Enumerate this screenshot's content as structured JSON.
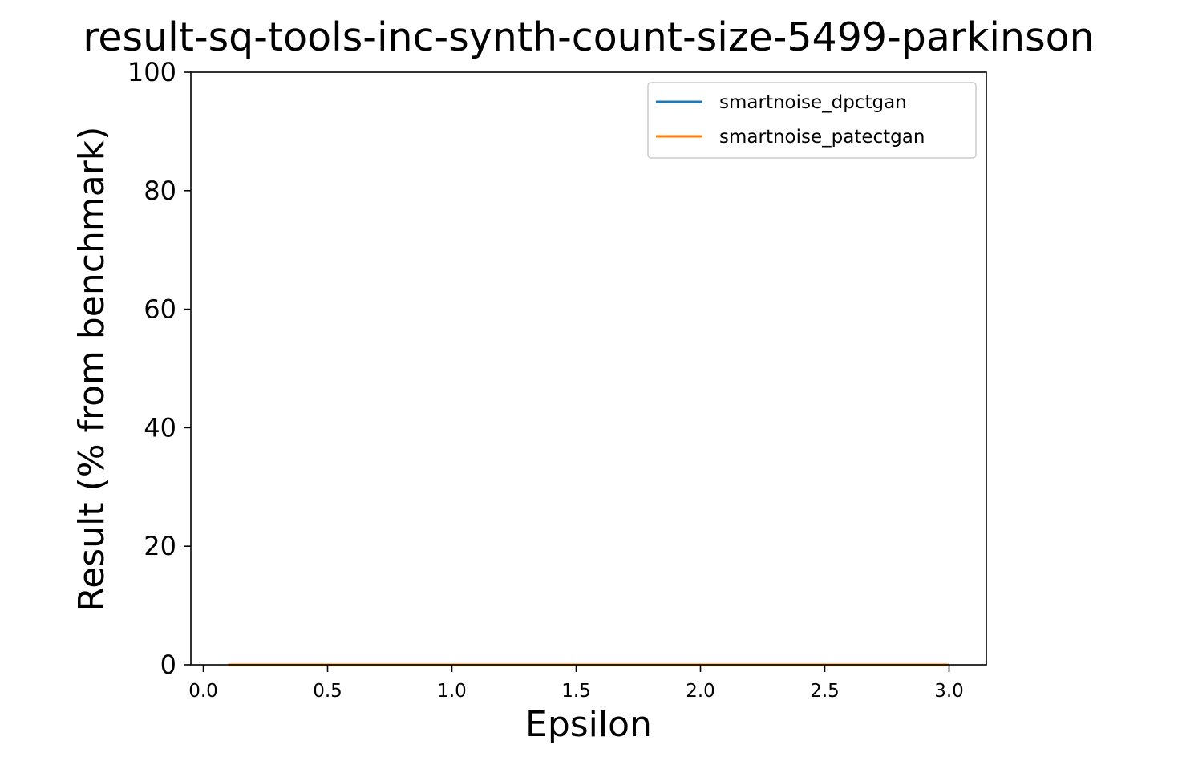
{
  "chart_data": {
    "type": "line",
    "title": "result-sq-tools-inc-synth-count-size-5499-parkinson",
    "xlabel": "Epsilon",
    "ylabel": "Result (% from benchmark)",
    "xlim": [
      -0.05,
      3.15
    ],
    "ylim": [
      0,
      100
    ],
    "xticks": [
      "0.0",
      "0.5",
      "1.0",
      "1.5",
      "2.0",
      "2.5",
      "3.0"
    ],
    "yticks": [
      "0",
      "20",
      "40",
      "60",
      "80",
      "100"
    ],
    "grid": false,
    "legend_position": "top-right",
    "series": [
      {
        "name": "smartnoise_dpctgan",
        "color": "#1f77b4",
        "x": [
          0.1,
          0.5,
          1.0,
          1.5,
          2.0,
          2.5,
          3.0
        ],
        "y": [
          0,
          0,
          0,
          0,
          0,
          0,
          0
        ]
      },
      {
        "name": "smartnoise_patectgan",
        "color": "#ff7f0e",
        "x": [
          0.1,
          0.5,
          1.0,
          1.5,
          2.0,
          2.5,
          3.0
        ],
        "y": [
          0,
          0,
          0,
          0,
          0,
          0,
          0
        ]
      }
    ]
  }
}
